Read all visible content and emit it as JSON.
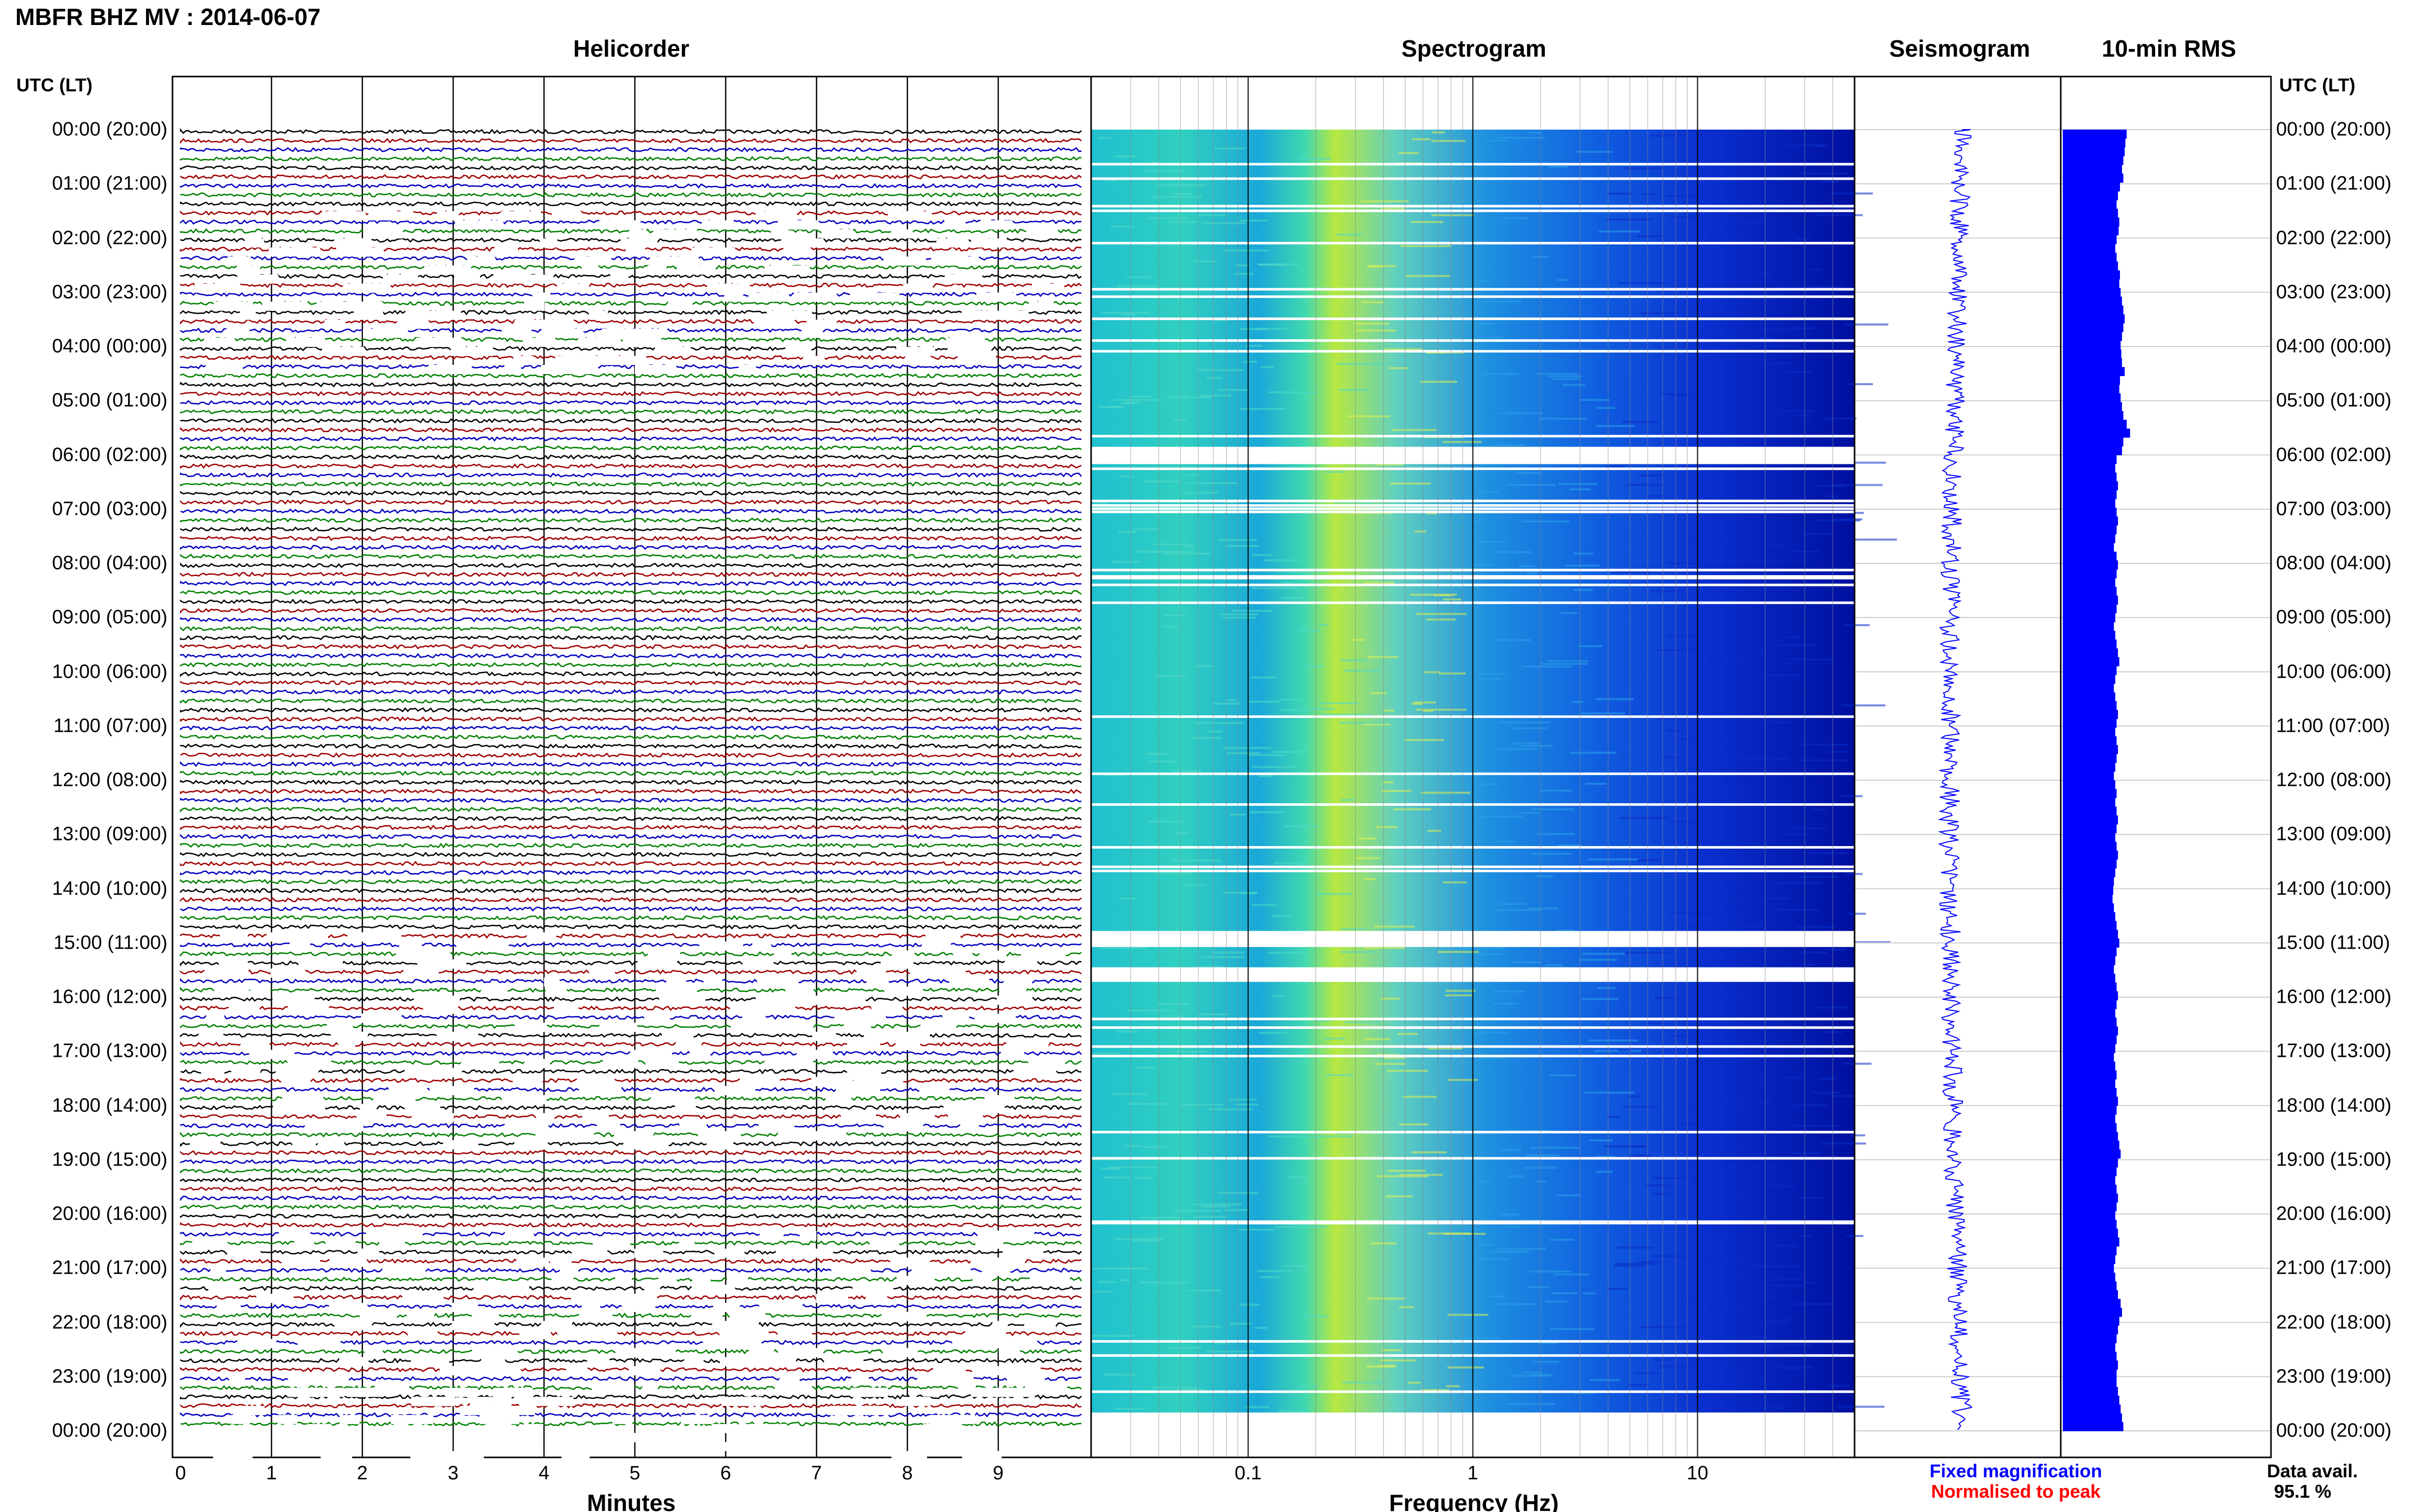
{
  "title": "MBFR BHZ MV : 2014-06-07",
  "panels": {
    "helicorder": "Helicorder",
    "spectrogram": "Spectrogram",
    "seismogram": "Seismogram",
    "rms": "10-min RMS"
  },
  "axis_headers": {
    "left": "UTC (LT)",
    "right": "UTC (LT)"
  },
  "time_labels": [
    "00:00 (20:00)",
    "01:00 (21:00)",
    "02:00 (22:00)",
    "03:00 (23:00)",
    "04:00 (00:00)",
    "05:00 (01:00)",
    "06:00 (02:00)",
    "07:00 (03:00)",
    "08:00 (04:00)",
    "09:00 (05:00)",
    "10:00 (06:00)",
    "11:00 (07:00)",
    "12:00 (08:00)",
    "13:00 (09:00)",
    "14:00 (10:00)",
    "15:00 (11:00)",
    "16:00 (12:00)",
    "17:00 (13:00)",
    "18:00 (14:00)",
    "19:00 (15:00)",
    "20:00 (16:00)",
    "21:00 (17:00)",
    "22:00 (18:00)",
    "23:00 (19:00)",
    "00:00 (20:00)"
  ],
  "helicorder_axis": {
    "xlabel": "Minutes",
    "ticks": [
      "0",
      "1",
      "2",
      "3",
      "4",
      "5",
      "6",
      "7",
      "8",
      "9"
    ],
    "trace_colors": [
      "#000000",
      "#a00000",
      "#0000c0",
      "#008000"
    ]
  },
  "spectrogram_axis": {
    "xlabel": "Frequency (Hz)",
    "ticks": [
      "0.1",
      "1",
      "10"
    ],
    "scale": "log"
  },
  "legend": {
    "fixed": "Fixed magnification",
    "fixed_color": "#0000ff",
    "normalised": "Normalised to peak",
    "normalised_color": "#ff0000"
  },
  "availability": {
    "label": "Data avail.",
    "value": "95.1 %"
  },
  "chart_data": [
    {
      "type": "line",
      "title": "Helicorder",
      "xlabel": "Minutes",
      "xlim": [
        0,
        10
      ],
      "rows_per_hour": 6,
      "hours": 24
    },
    {
      "type": "heatmap",
      "title": "Spectrogram",
      "xlabel": "Frequency (Hz)",
      "xscale": "log",
      "xlim": [
        0.02,
        50
      ],
      "gap_hours": [
        5.75,
        14.7,
        15.4
      ]
    },
    {
      "type": "line",
      "title": "Seismogram"
    },
    {
      "type": "bar",
      "title": "10-min RMS",
      "values": [
        0.95,
        0.93,
        0.92,
        0.9,
        0.88,
        0.9,
        0.85,
        0.82,
        0.8,
        0.82,
        0.84,
        0.83,
        0.8,
        0.78,
        0.8,
        0.82,
        0.85,
        0.84,
        0.86,
        0.88,
        0.9,
        0.92,
        0.9,
        0.88,
        0.86,
        0.87,
        0.88,
        0.92,
        0.85,
        0.84,
        0.86,
        0.88,
        0.9,
        0.95,
        1.0,
        0.9,
        0.88,
        0.8,
        0.78,
        0.8,
        0.82,
        0.8,
        0.78,
        0.8,
        0.82,
        0.8,
        0.78,
        0.76,
        0.8,
        0.82,
        0.8,
        0.78,
        0.8,
        0.82,
        0.8,
        0.78,
        0.76,
        0.78,
        0.8,
        0.82,
        0.84,
        0.8,
        0.78,
        0.76,
        0.78,
        0.8,
        0.82,
        0.8,
        0.78,
        0.8,
        0.82,
        0.8,
        0.78,
        0.76,
        0.78,
        0.8,
        0.78,
        0.8,
        0.82,
        0.8,
        0.78,
        0.8,
        0.82,
        0.8,
        0.78,
        0.76,
        0.75,
        0.74,
        0.76,
        0.78,
        0.8,
        0.82,
        0.84,
        0.8,
        0.78,
        0.76,
        0.78,
        0.8,
        0.82,
        0.8,
        0.78,
        0.8,
        0.82,
        0.8,
        0.78,
        0.76,
        0.78,
        0.8,
        0.78,
        0.8,
        0.82,
        0.8,
        0.78,
        0.8,
        0.82,
        0.84,
        0.86,
        0.82,
        0.8,
        0.78,
        0.8,
        0.82,
        0.8,
        0.78,
        0.8,
        0.82,
        0.84,
        0.8,
        0.78,
        0.76,
        0.78,
        0.8,
        0.82,
        0.86,
        0.88,
        0.84,
        0.82,
        0.8,
        0.78,
        0.8,
        0.82,
        0.8,
        0.8,
        0.82,
        0.84,
        0.86,
        0.88,
        0.9
      ]
    }
  ]
}
